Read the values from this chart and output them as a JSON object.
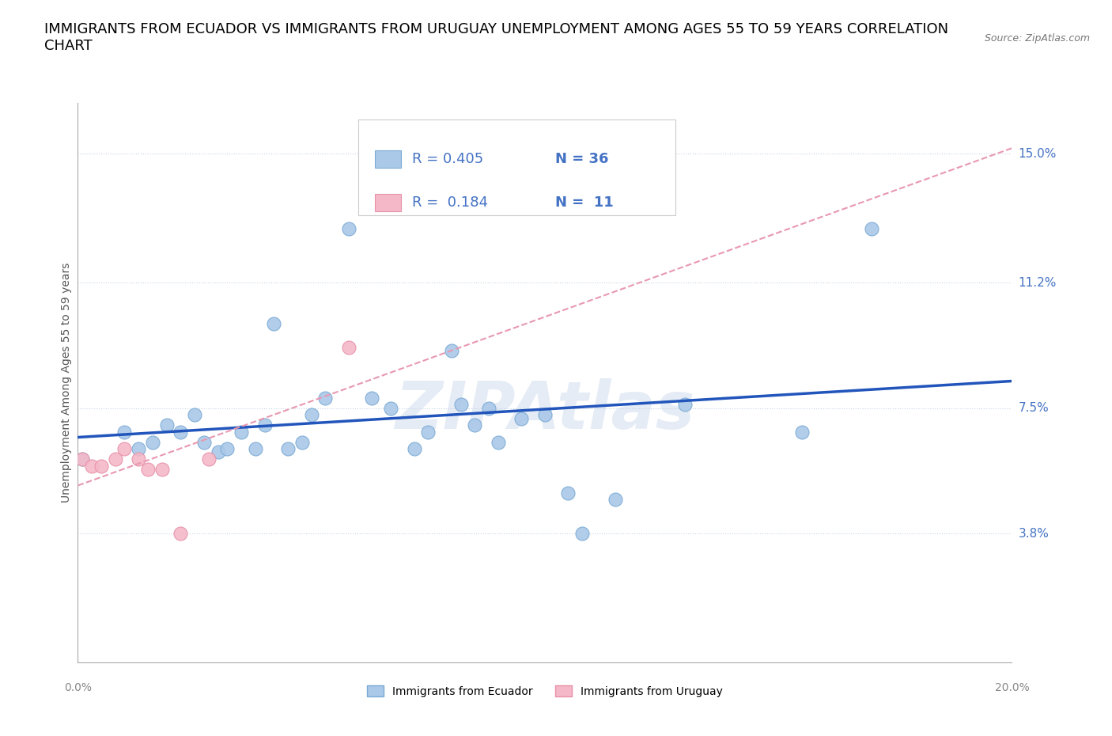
{
  "title": "IMMIGRANTS FROM ECUADOR VS IMMIGRANTS FROM URUGUAY UNEMPLOYMENT AMONG AGES 55 TO 59 YEARS CORRELATION\nCHART",
  "source": "Source: ZipAtlas.com",
  "ylabel": "Unemployment Among Ages 55 to 59 years",
  "ytick_labels": [
    "15.0%",
    "11.2%",
    "7.5%",
    "3.8%"
  ],
  "ytick_values": [
    0.15,
    0.112,
    0.075,
    0.038
  ],
  "xlim": [
    0.0,
    0.2
  ],
  "ylim": [
    0.0,
    0.165
  ],
  "ecuador_color": "#aac8e8",
  "ecuador_edge": "#7aaad4",
  "uruguay_color": "#f4b8c8",
  "uruguay_edge": "#e890a8",
  "ecuador_line_color": "#2255bb",
  "uruguay_line_color": "#e898b0",
  "R_ecuador": 0.405,
  "N_ecuador": 36,
  "R_uruguay": 0.184,
  "N_uruguay": 11,
  "watermark": "ZIPAtlas",
  "ecuador_x": [
    0.001,
    0.01,
    0.013,
    0.016,
    0.019,
    0.022,
    0.025,
    0.027,
    0.03,
    0.032,
    0.035,
    0.038,
    0.04,
    0.042,
    0.045,
    0.048,
    0.05,
    0.053,
    0.058,
    0.063,
    0.067,
    0.072,
    0.075,
    0.08,
    0.082,
    0.085,
    0.088,
    0.09,
    0.095,
    0.1,
    0.105,
    0.108,
    0.115,
    0.13,
    0.155,
    0.17
  ],
  "ecuador_y": [
    0.06,
    0.068,
    0.063,
    0.065,
    0.07,
    0.068,
    0.073,
    0.065,
    0.062,
    0.063,
    0.068,
    0.063,
    0.07,
    0.1,
    0.063,
    0.065,
    0.073,
    0.078,
    0.128,
    0.078,
    0.075,
    0.063,
    0.068,
    0.092,
    0.076,
    0.07,
    0.075,
    0.065,
    0.072,
    0.073,
    0.05,
    0.038,
    0.048,
    0.076,
    0.068,
    0.128
  ],
  "uruguay_x": [
    0.001,
    0.003,
    0.005,
    0.008,
    0.01,
    0.013,
    0.015,
    0.018,
    0.022,
    0.028,
    0.058
  ],
  "uruguay_y": [
    0.06,
    0.058,
    0.058,
    0.06,
    0.063,
    0.06,
    0.057,
    0.057,
    0.038,
    0.06,
    0.093
  ],
  "marker_size": 150,
  "title_fontsize": 13,
  "label_fontsize": 10,
  "legend_fontsize": 13,
  "right_label_color": "#4472c4",
  "legend_text_color": "#4472c4",
  "grid_color": "#d0d8e8",
  "dotted_grid_color": "#c8d4e4"
}
